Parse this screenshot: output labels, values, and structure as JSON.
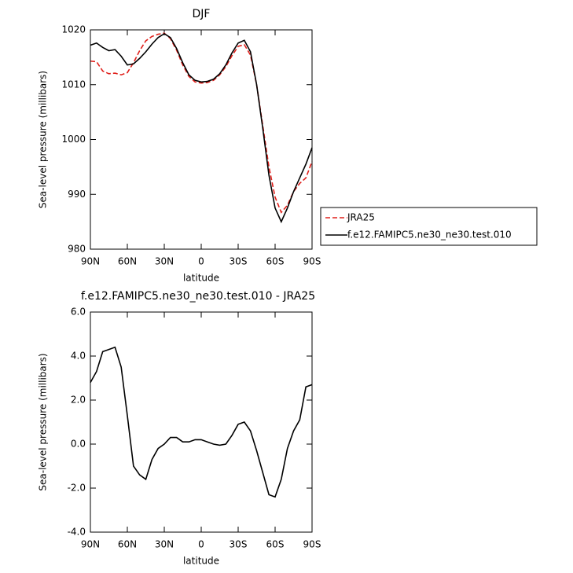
{
  "chart_data": [
    {
      "type": "line",
      "title": "DJF",
      "xlabel": "latitude",
      "ylabel": "Sea-level pressure (millibars)",
      "x": [
        90,
        85,
        80,
        75,
        70,
        65,
        60,
        55,
        50,
        45,
        40,
        35,
        30,
        25,
        20,
        15,
        10,
        5,
        0,
        -5,
        -10,
        -15,
        -20,
        -25,
        -30,
        -35,
        -40,
        -45,
        -50,
        -55,
        -60,
        -65,
        -70,
        -75,
        -80,
        -85,
        -90
      ],
      "xlim": [
        90,
        -90
      ],
      "xticks": [
        {
          "value": 90,
          "label": "90N"
        },
        {
          "value": 60,
          "label": "60N"
        },
        {
          "value": 30,
          "label": "30N"
        },
        0,
        {
          "value": -30,
          "label": "30S"
        },
        {
          "value": -60,
          "label": "60S"
        },
        {
          "value": -90,
          "label": "90S"
        }
      ],
      "ylim": [
        980,
        1020
      ],
      "yticks": [
        980,
        990,
        1000,
        1010,
        1020
      ],
      "legend": "outside-right",
      "series": [
        {
          "name": "JRA25",
          "color": "#e0201b",
          "dash": true,
          "values": [
            1014.3,
            1014.2,
            1012.5,
            1012.0,
            1012.1,
            1011.8,
            1012.2,
            1014.0,
            1016.2,
            1018.0,
            1018.8,
            1019.2,
            1019.4,
            1018.4,
            1016.3,
            1013.6,
            1011.5,
            1010.5,
            1010.3,
            1010.4,
            1010.8,
            1011.8,
            1013.3,
            1015.3,
            1017.0,
            1017.3,
            1015.4,
            1010.0,
            1002.5,
            995.0,
            989.5,
            986.7,
            988.0,
            990.5,
            992.0,
            993.0,
            996.0
          ]
        },
        {
          "name": "f.e12.FAMIPC5.ne30_ne30.test.010",
          "color": "#000000",
          "dash": false,
          "values": [
            1017.2,
            1017.6,
            1016.8,
            1016.2,
            1016.4,
            1015.2,
            1013.6,
            1013.8,
            1014.8,
            1016.0,
            1017.4,
            1018.6,
            1019.3,
            1018.6,
            1016.6,
            1014.0,
            1011.8,
            1010.8,
            1010.5,
            1010.6,
            1011.0,
            1012.0,
            1013.6,
            1015.8,
            1017.6,
            1018.1,
            1016.0,
            1010.0,
            1002.0,
            993.5,
            987.5,
            985.0,
            987.5,
            990.5,
            993.0,
            995.5,
            998.5
          ]
        }
      ]
    },
    {
      "type": "line",
      "title": "f.e12.FAMIPC5.ne30_ne30.test.010 - JRA25",
      "xlabel": "latitude",
      "ylabel": "Sea-level pressure (millibars)",
      "x": [
        90,
        85,
        80,
        75,
        70,
        65,
        60,
        55,
        50,
        45,
        40,
        35,
        30,
        25,
        20,
        15,
        10,
        5,
        0,
        -5,
        -10,
        -15,
        -20,
        -25,
        -30,
        -35,
        -40,
        -45,
        -50,
        -55,
        -60,
        -65,
        -70,
        -75,
        -80,
        -85,
        -90
      ],
      "xlim": [
        90,
        -90
      ],
      "xticks": [
        {
          "value": 90,
          "label": "90N"
        },
        {
          "value": 60,
          "label": "60N"
        },
        {
          "value": 30,
          "label": "30N"
        },
        0,
        {
          "value": -30,
          "label": "30S"
        },
        {
          "value": -60,
          "label": "60S"
        },
        {
          "value": -90,
          "label": "90S"
        }
      ],
      "ylim": [
        -4,
        6
      ],
      "yticks": [
        {
          "value": -4,
          "label": "-4.0"
        },
        {
          "value": -2,
          "label": "-2.0"
        },
        {
          "value": 0,
          "label": "0.0"
        },
        {
          "value": 2,
          "label": "2.0"
        },
        {
          "value": 4,
          "label": "4.0"
        },
        {
          "value": 6,
          "label": "6.0"
        }
      ],
      "series": [
        {
          "color": "#000000",
          "dash": false,
          "values": [
            2.8,
            3.3,
            4.2,
            4.3,
            4.4,
            3.5,
            1.3,
            -1.0,
            -1.4,
            -1.6,
            -0.7,
            -0.2,
            0.0,
            0.3,
            0.3,
            0.1,
            0.1,
            0.2,
            0.2,
            0.1,
            0.0,
            -0.05,
            0.0,
            0.4,
            0.9,
            1.0,
            0.6,
            -0.3,
            -1.3,
            -2.3,
            -2.4,
            -1.6,
            -0.2,
            0.6,
            1.1,
            2.6,
            2.7
          ]
        }
      ]
    }
  ]
}
